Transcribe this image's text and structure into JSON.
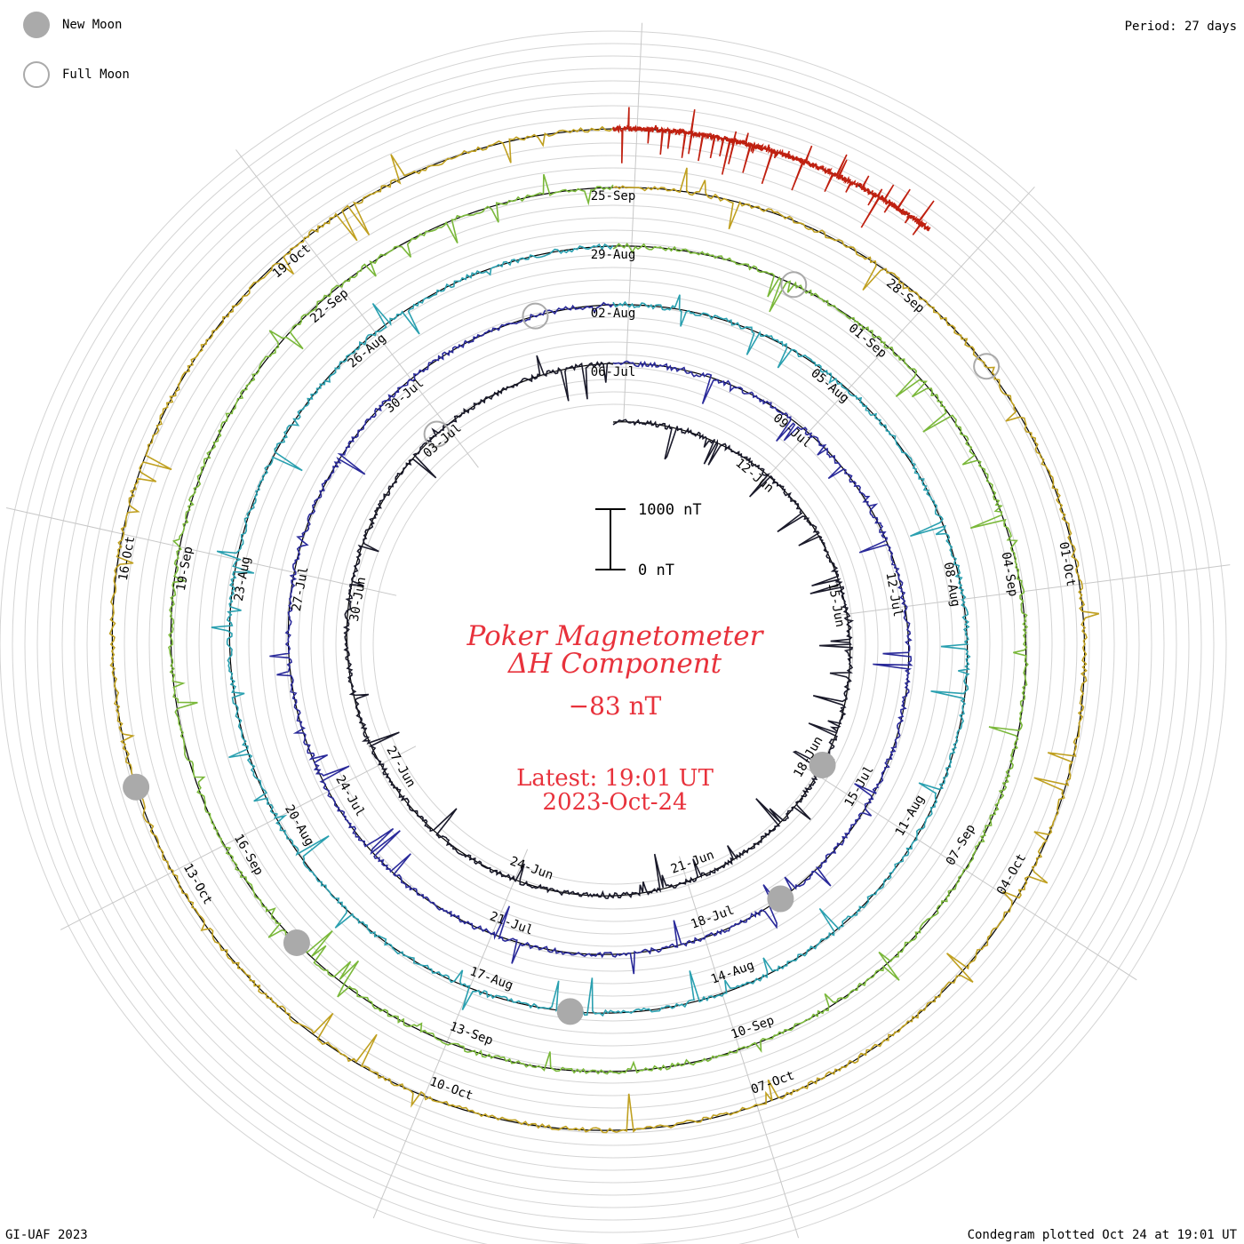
{
  "header": {
    "period_label": "Period: 27 days"
  },
  "legend": {
    "new_moon_label": "New Moon",
    "full_moon_label": "Full Moon",
    "moon_color": "#aaaaaa"
  },
  "title": {
    "line1": "Poker Magnetometer",
    "line2": "ΔH Component",
    "current_value": "−83 nT",
    "latest_line": "Latest: 19:01 UT",
    "date_line": "2023-Oct-24",
    "color": "#e8323c"
  },
  "scale_bar": {
    "top_label": "1000 nT",
    "bottom_label": "0 nT"
  },
  "footer": {
    "credit": "GI-UAF 2023",
    "plotted": "Condegram plotted Oct 24 at 19:01 UT"
  },
  "chart_data": {
    "type": "line",
    "title": "Poker Magnetometer ΔH Component",
    "period_days": 27,
    "units": "nT",
    "grid": true,
    "spiral_turns": [
      {
        "start": "2023-Jun-09",
        "color": "#1a1a2a",
        "labels": [
          "12-Jun",
          "15-Jun",
          "18-Jun",
          "21-Jun",
          "24-Jun",
          "27-Jun",
          "30-Jun",
          "03-Jul",
          "06-Jul"
        ]
      },
      {
        "start": "2023-Jul-06",
        "color": "#2a2a9a",
        "labels": [
          "09-Jul",
          "12-Jul",
          "15-Jul",
          "18-Jul",
          "21-Jul",
          "24-Jul",
          "27-Jul",
          "30-Jul",
          "02-Aug"
        ]
      },
      {
        "start": "2023-Aug-02",
        "color": "#2aa0b0",
        "labels": [
          "05-Aug",
          "08-Aug",
          "11-Aug",
          "14-Aug",
          "17-Aug",
          "20-Aug",
          "23-Aug",
          "26-Aug",
          "29-Aug"
        ]
      },
      {
        "start": "2023-Aug-29",
        "color": "#7ab83a",
        "labels": [
          "01-Sep",
          "04-Sep",
          "07-Sep",
          "10-Sep",
          "13-Sep",
          "16-Sep",
          "19-Sep",
          "22-Sep",
          "25-Sep"
        ]
      },
      {
        "start": "2023-Sep-25",
        "color": "#c0a020",
        "labels": [
          "28-Sep",
          "01-Oct",
          "04-Oct",
          "07-Oct",
          "10-Oct",
          "13-Oct",
          "16-Oct",
          "19-Oct"
        ]
      },
      {
        "start": "2023-Oct-22",
        "color": "#c02010",
        "labels": []
      }
    ],
    "new_moons": [
      "2023-Jun-18",
      "2023-Jul-17",
      "2023-Aug-16",
      "2023-Sep-15",
      "2023-Oct-14"
    ],
    "full_moons": [
      "2023-Jul-03",
      "2023-Aug-01",
      "2023-Aug-31",
      "2023-Sep-29"
    ]
  }
}
